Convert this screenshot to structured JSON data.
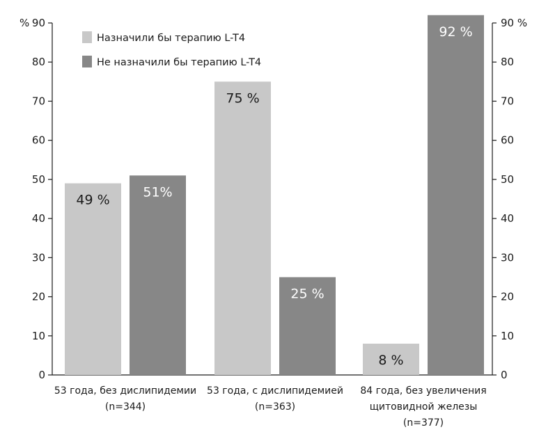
{
  "chart_data": {
    "type": "bar",
    "unit_label_left": "%",
    "unit_label_right": "%",
    "categories": [
      [
        "53 года, без дислипидемии",
        "(n=344)"
      ],
      [
        "53 года, с дислипидемией",
        "(n=363)"
      ],
      [
        "84 года, без увеличения",
        "щитовидной железы",
        "(n=377)"
      ]
    ],
    "series": [
      {
        "name": "Назначили бы терапию L-T4",
        "color": "#c8c8c8",
        "label_color": "#1a1a1a",
        "values": [
          49,
          75,
          8
        ],
        "labels": [
          "49 %",
          "75 %",
          "8 %"
        ]
      },
      {
        "name": "Не назначили бы терапию L-T4",
        "color": "#878787",
        "label_color": "#ffffff",
        "values": [
          51,
          25,
          92
        ],
        "labels": [
          "51%",
          "25 %",
          "92 %"
        ]
      }
    ],
    "ylim": [
      0,
      90
    ],
    "yticks": [
      0,
      10,
      20,
      30,
      40,
      50,
      60,
      70,
      80,
      90
    ],
    "grid": false,
    "legend_position": "top-left"
  }
}
